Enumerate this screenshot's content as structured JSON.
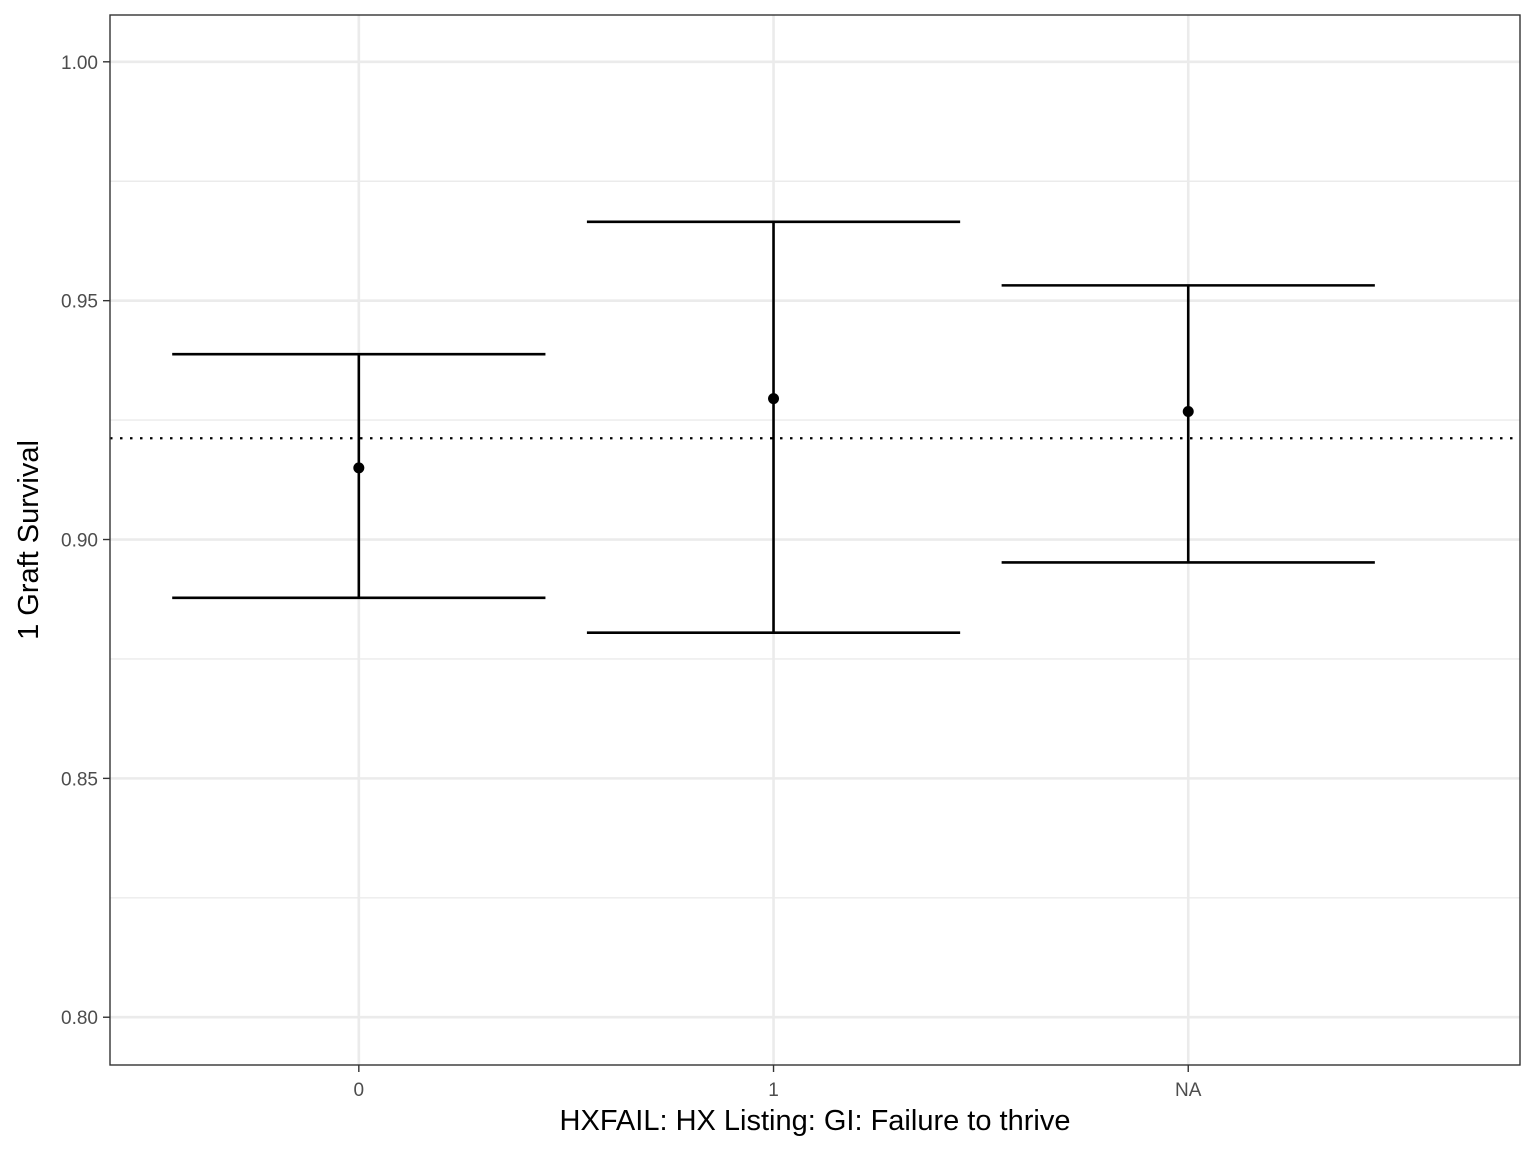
{
  "chart_data": {
    "type": "errorbar",
    "title": "",
    "xlabel": "HXFAIL: HX Listing: GI: Failure to thrive",
    "ylabel": "1 Graft Survival",
    "categories": [
      "0",
      "1",
      "NA"
    ],
    "series": [
      {
        "estimate": [
          0.915,
          0.9295,
          0.9268
        ],
        "lower": [
          0.8878,
          0.8805,
          0.8952
        ],
        "upper": [
          0.9388,
          0.9665,
          0.9532
        ]
      }
    ],
    "reference_line": {
      "value": 0.9212,
      "style": "dotted"
    },
    "ylim": [
      0.79,
      1.0098
    ],
    "y_ticks": [
      0.8,
      0.85,
      0.9,
      0.95,
      1.0
    ],
    "y_tick_labels": [
      "0.80",
      "0.85",
      "0.90",
      "0.95",
      "1.00"
    ],
    "y_minor_ticks": [
      0.825,
      0.875,
      0.925,
      0.975
    ],
    "grid": true,
    "legend": "none",
    "colors": {
      "marks": "#000000",
      "grid": "#ebebeb",
      "panel_border": "#333333",
      "tick_text": "#4d4d4d"
    }
  }
}
